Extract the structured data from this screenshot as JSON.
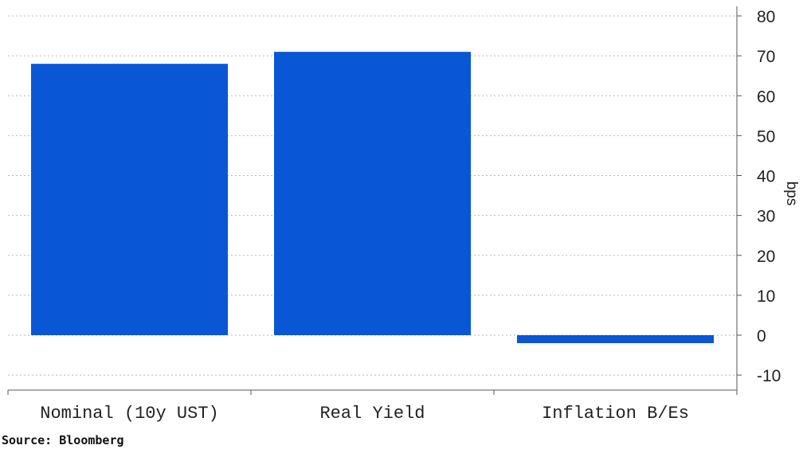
{
  "chart_data": {
    "type": "bar",
    "categories": [
      "Nominal (10y UST)",
      "Real Yield",
      "Inflation B/Es"
    ],
    "values": [
      68,
      71,
      -2
    ],
    "ylabel": "bps",
    "ylim": [
      -15,
      85
    ],
    "yticks": [
      -10,
      0,
      10,
      20,
      30,
      40,
      50,
      60,
      70,
      80
    ],
    "grid": true,
    "bar_color": "#0a57d6",
    "y_axis_side": "right"
  },
  "source": "Source: Bloomberg"
}
